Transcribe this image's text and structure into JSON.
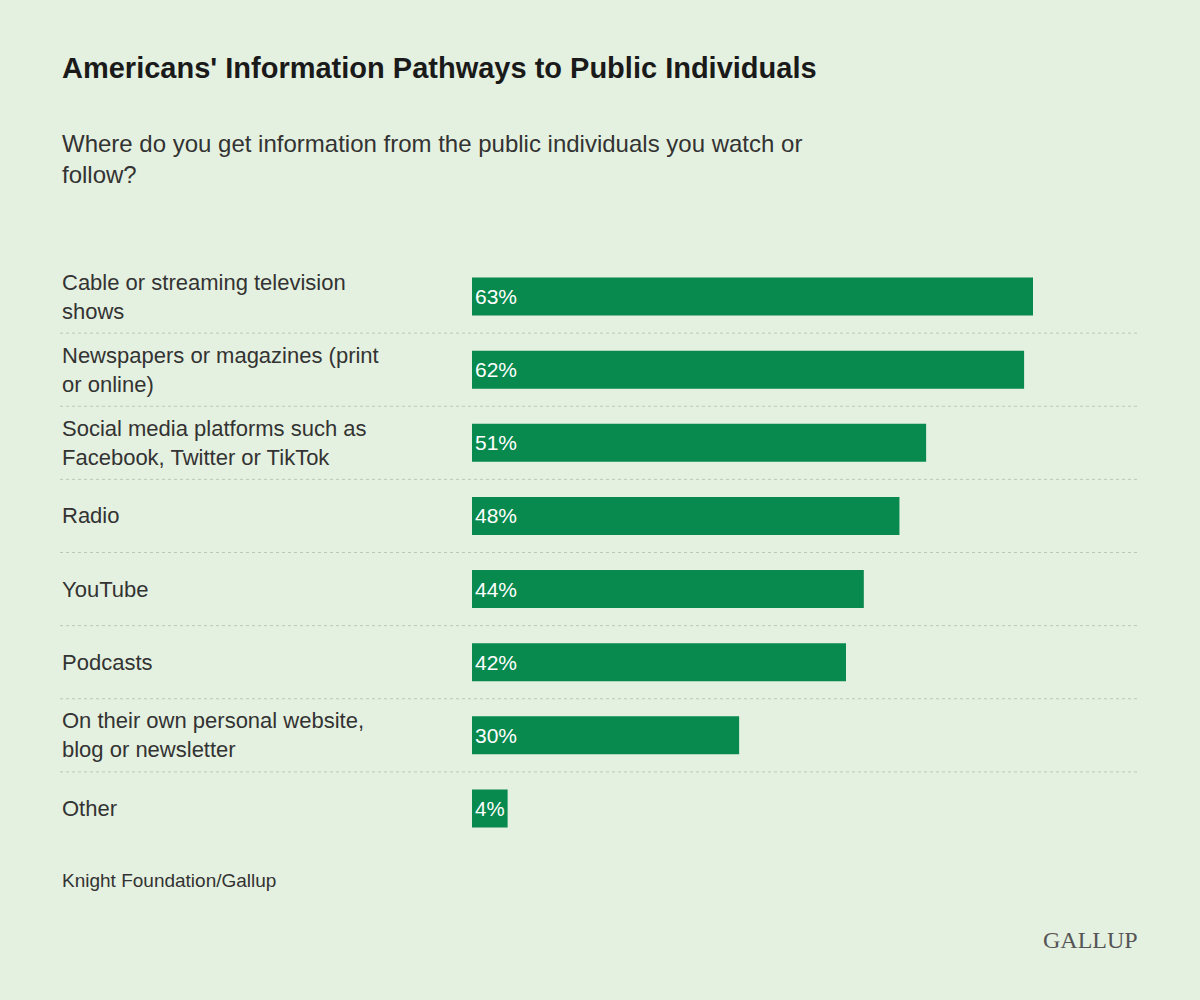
{
  "chart_data": {
    "type": "bar",
    "title": "Americans' Information Pathways to Public Individuals",
    "subtitle": "Where do you get information from the public individuals you watch or follow?",
    "categories": [
      "Cable or streaming television shows",
      "Newspapers or magazines (print or online)",
      "Social media platforms such as Facebook, Twitter or TikTok",
      "Radio",
      "YouTube",
      "Podcasts",
      "On their own personal website, blog or newsletter",
      "Other"
    ],
    "values": [
      63,
      62,
      51,
      48,
      44,
      42,
      30,
      4
    ],
    "value_labels": [
      "63%",
      "62%",
      "51%",
      "48%",
      "44%",
      "42%",
      "30%",
      "4%"
    ],
    "color": "#08894e",
    "orientation": "horizontal",
    "data_labels": true,
    "tick_labels": "y",
    "grid": false,
    "xlim": [
      0,
      63
    ],
    "annotations": [
      "Knight Foundation/Gallup",
      "GALLUP"
    ]
  }
}
